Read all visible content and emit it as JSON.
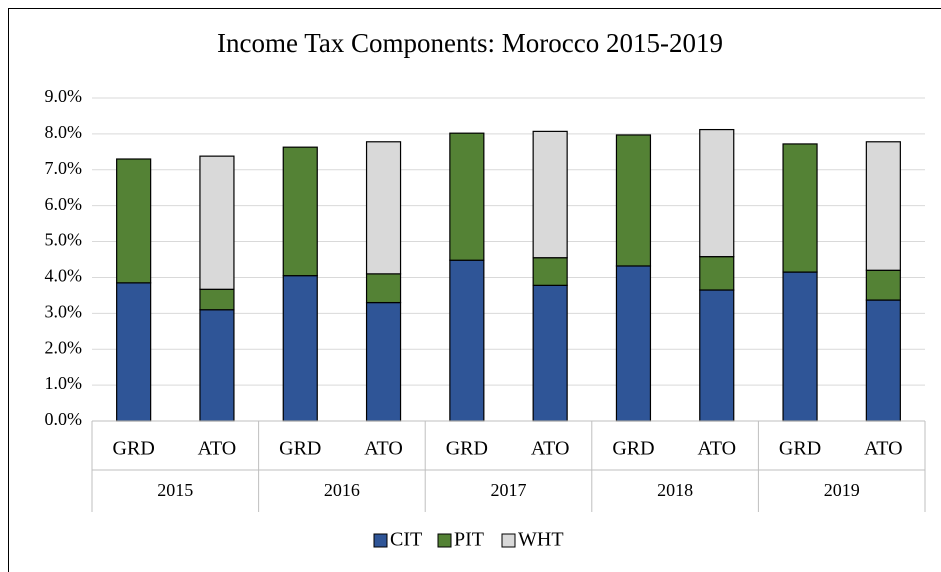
{
  "chart_data": {
    "type": "stacked_bar",
    "title": "Income Tax Components: Morocco 2015-2019",
    "categories": [
      "GRD",
      "ATO",
      "GRD",
      "ATO",
      "GRD",
      "ATO",
      "GRD",
      "ATO",
      "GRD",
      "ATO"
    ],
    "category_groups": [
      "2015",
      "2016",
      "2017",
      "2018",
      "2019"
    ],
    "series": [
      {
        "name": "CIT",
        "color": "#2f5597",
        "values": [
          3.85,
          3.1,
          4.05,
          3.3,
          4.48,
          3.78,
          4.32,
          3.65,
          4.15,
          3.37
        ]
      },
      {
        "name": "PIT",
        "color": "#548235",
        "values": [
          3.45,
          0.57,
          3.58,
          0.8,
          3.54,
          0.77,
          3.65,
          0.93,
          3.57,
          0.83
        ]
      },
      {
        "name": "WHT",
        "color": "#d9d9d9",
        "values": [
          null,
          3.71,
          null,
          3.68,
          null,
          3.52,
          null,
          3.54,
          null,
          3.58
        ]
      }
    ],
    "ylim": [
      0,
      9
    ],
    "yticks": [
      {
        "value": 0,
        "label": "0.0%"
      },
      {
        "value": 1,
        "label": "1.0%"
      },
      {
        "value": 2,
        "label": "2.0%"
      },
      {
        "value": 3,
        "label": "3.0%"
      },
      {
        "value": 4,
        "label": "4.0%"
      },
      {
        "value": 5,
        "label": "5.0%"
      },
      {
        "value": 6,
        "label": "6.0%"
      },
      {
        "value": 7,
        "label": "7.0%"
      },
      {
        "value": 8,
        "label": "8.0%"
      },
      {
        "value": 9,
        "label": "9.0%"
      }
    ],
    "grid": true,
    "legend": "bottom"
  }
}
